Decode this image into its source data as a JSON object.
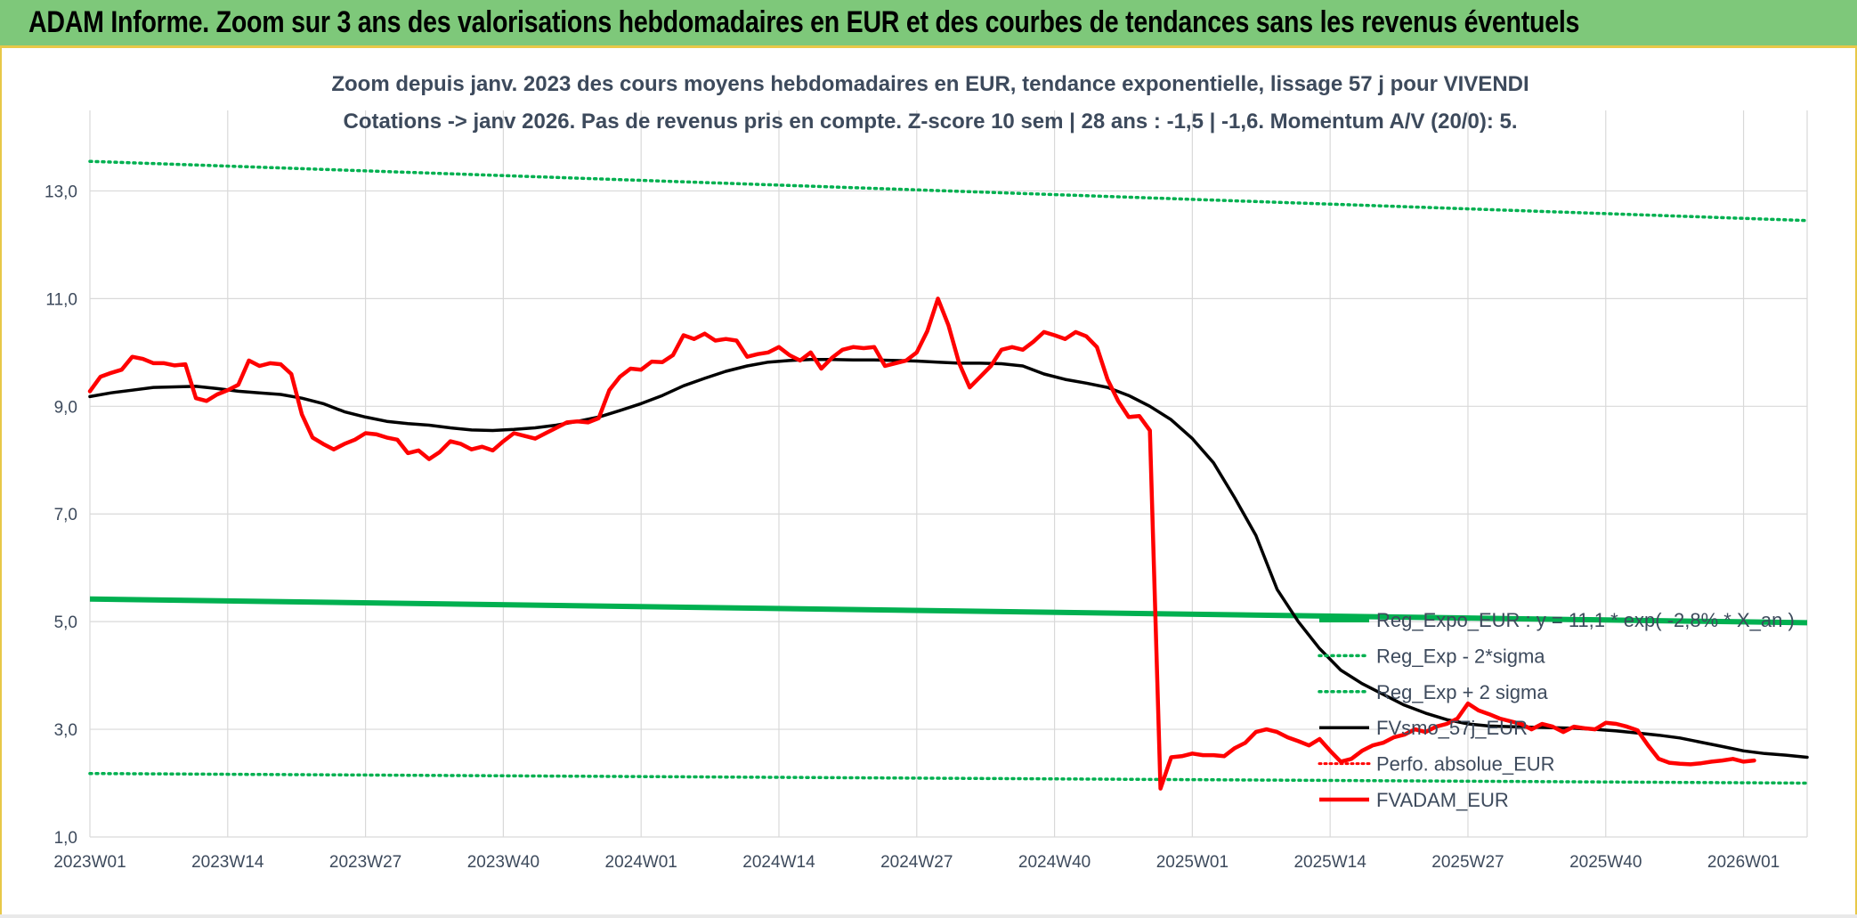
{
  "header": {
    "title": "ADAM Informe. Zoom sur 3 ans des valorisations hebdomadaires en EUR et des courbes de tendances sans les revenus éventuels"
  },
  "colors": {
    "banner": "#7ec87a",
    "reg_green": "#00b050",
    "price_red": "#ff0000",
    "smooth_black": "#000000",
    "grid": "#d9d9d9",
    "text": "#3d4a5c"
  },
  "chart_data": {
    "type": "line",
    "title_lines": [
      "Zoom depuis janv. 2023 des cours moyens hebdomadaires en EUR, tendance exponentielle, lissage 57 j pour VIVENDI",
      "Cotations -> janv 2026. Pas de revenus pris en compte. Z-score 10 sem | 28 ans : -1,5 | -1,6. Momentum A/V (20/0): 5."
    ],
    "x_ticks": [
      "2023W01",
      "2023W14",
      "2023W27",
      "2023W40",
      "2024W01",
      "2024W14",
      "2024W27",
      "2024W40",
      "2025W01",
      "2025W14",
      "2025W27",
      "2025W40",
      "2026W01"
    ],
    "x_range": [
      0,
      162
    ],
    "y_ticks": [
      "1,0",
      "3,0",
      "5,0",
      "7,0",
      "9,0",
      "11,0",
      "13,0"
    ],
    "ylim": [
      1,
      14
    ],
    "legend": [
      {
        "label": "Reg_Expo_EUR : y = 11,1 * exp( -2,8% * X_an )",
        "style": "solid-green"
      },
      {
        "label": "Reg_Exp - 2*sigma",
        "style": "dotted-green"
      },
      {
        "label": "Reg_Exp + 2 sigma",
        "style": "dotted-green"
      },
      {
        "label": "FVsmo_57j_EUR",
        "style": "solid-black"
      },
      {
        "label": "Perfo. absolue_EUR",
        "style": "dotted-red"
      },
      {
        "label": "FVADAM_EUR",
        "style": "solid-red"
      }
    ],
    "series": [
      {
        "name": "Reg_Expo_EUR",
        "points": [
          [
            0,
            5.42
          ],
          [
            162,
            4.98
          ]
        ]
      },
      {
        "name": "Reg_Exp - 2*sigma",
        "points": [
          [
            0,
            2.18
          ],
          [
            162,
            2.0
          ]
        ]
      },
      {
        "name": "Reg_Exp + 2 sigma",
        "points": [
          [
            0,
            13.55
          ],
          [
            162,
            12.45
          ]
        ]
      },
      {
        "name": "FVsmo_57j_EUR",
        "points": [
          [
            0,
            9.18
          ],
          [
            2,
            9.25
          ],
          [
            4,
            9.3
          ],
          [
            6,
            9.35
          ],
          [
            8,
            9.36
          ],
          [
            10,
            9.37
          ],
          [
            12,
            9.33
          ],
          [
            14,
            9.28
          ],
          [
            16,
            9.25
          ],
          [
            18,
            9.22
          ],
          [
            20,
            9.15
          ],
          [
            22,
            9.05
          ],
          [
            24,
            8.9
          ],
          [
            26,
            8.8
          ],
          [
            28,
            8.72
          ],
          [
            30,
            8.68
          ],
          [
            32,
            8.65
          ],
          [
            34,
            8.6
          ],
          [
            36,
            8.56
          ],
          [
            38,
            8.55
          ],
          [
            40,
            8.57
          ],
          [
            42,
            8.6
          ],
          [
            44,
            8.65
          ],
          [
            46,
            8.72
          ],
          [
            48,
            8.8
          ],
          [
            50,
            8.92
          ],
          [
            52,
            9.05
          ],
          [
            54,
            9.2
          ],
          [
            56,
            9.38
          ],
          [
            58,
            9.52
          ],
          [
            60,
            9.65
          ],
          [
            62,
            9.75
          ],
          [
            64,
            9.82
          ],
          [
            66,
            9.85
          ],
          [
            68,
            9.87
          ],
          [
            70,
            9.87
          ],
          [
            72,
            9.86
          ],
          [
            74,
            9.86
          ],
          [
            76,
            9.85
          ],
          [
            78,
            9.84
          ],
          [
            80,
            9.82
          ],
          [
            82,
            9.8
          ],
          [
            84,
            9.8
          ],
          [
            86,
            9.79
          ],
          [
            88,
            9.75
          ],
          [
            90,
            9.6
          ],
          [
            92,
            9.5
          ],
          [
            94,
            9.43
          ],
          [
            96,
            9.35
          ],
          [
            98,
            9.2
          ],
          [
            100,
            9.0
          ],
          [
            102,
            8.75
          ],
          [
            104,
            8.4
          ],
          [
            106,
            7.95
          ],
          [
            108,
            7.3
          ],
          [
            110,
            6.6
          ],
          [
            112,
            5.6
          ],
          [
            114,
            5.0
          ],
          [
            116,
            4.5
          ],
          [
            118,
            4.1
          ],
          [
            120,
            3.85
          ],
          [
            122,
            3.65
          ],
          [
            124,
            3.45
          ],
          [
            126,
            3.3
          ],
          [
            128,
            3.18
          ],
          [
            130,
            3.1
          ],
          [
            132,
            3.06
          ],
          [
            134,
            3.05
          ],
          [
            136,
            3.04
          ],
          [
            138,
            3.03
          ],
          [
            140,
            3.02
          ],
          [
            142,
            3.0
          ],
          [
            144,
            2.97
          ],
          [
            146,
            2.93
          ],
          [
            148,
            2.89
          ],
          [
            150,
            2.84
          ],
          [
            152,
            2.76
          ],
          [
            154,
            2.68
          ],
          [
            156,
            2.6
          ],
          [
            158,
            2.55
          ],
          [
            160,
            2.52
          ],
          [
            162,
            2.48
          ]
        ]
      },
      {
        "name": "FVADAM_EUR",
        "points": [
          [
            0,
            9.28
          ],
          [
            1,
            9.55
          ],
          [
            2,
            9.62
          ],
          [
            3,
            9.68
          ],
          [
            4,
            9.92
          ],
          [
            5,
            9.88
          ],
          [
            6,
            9.8
          ],
          [
            7,
            9.8
          ],
          [
            8,
            9.76
          ],
          [
            9,
            9.78
          ],
          [
            10,
            9.15
          ],
          [
            11,
            9.1
          ],
          [
            12,
            9.22
          ],
          [
            13,
            9.3
          ],
          [
            14,
            9.4
          ],
          [
            15,
            9.85
          ],
          [
            16,
            9.75
          ],
          [
            17,
            9.8
          ],
          [
            18,
            9.78
          ],
          [
            19,
            9.6
          ],
          [
            20,
            8.85
          ],
          [
            21,
            8.42
          ],
          [
            22,
            8.3
          ],
          [
            23,
            8.2
          ],
          [
            24,
            8.3
          ],
          [
            25,
            8.38
          ],
          [
            26,
            8.5
          ],
          [
            27,
            8.48
          ],
          [
            28,
            8.42
          ],
          [
            29,
            8.38
          ],
          [
            30,
            8.13
          ],
          [
            31,
            8.18
          ],
          [
            32,
            8.02
          ],
          [
            33,
            8.15
          ],
          [
            34,
            8.35
          ],
          [
            35,
            8.3
          ],
          [
            36,
            8.2
          ],
          [
            37,
            8.25
          ],
          [
            38,
            8.18
          ],
          [
            39,
            8.35
          ],
          [
            40,
            8.5
          ],
          [
            41,
            8.45
          ],
          [
            42,
            8.4
          ],
          [
            43,
            8.5
          ],
          [
            44,
            8.6
          ],
          [
            45,
            8.7
          ],
          [
            46,
            8.72
          ],
          [
            47,
            8.7
          ],
          [
            48,
            8.78
          ],
          [
            49,
            9.3
          ],
          [
            50,
            9.55
          ],
          [
            51,
            9.7
          ],
          [
            52,
            9.68
          ],
          [
            53,
            9.83
          ],
          [
            54,
            9.82
          ],
          [
            55,
            9.95
          ],
          [
            56,
            10.32
          ],
          [
            57,
            10.25
          ],
          [
            58,
            10.35
          ],
          [
            59,
            10.22
          ],
          [
            60,
            10.25
          ],
          [
            61,
            10.22
          ],
          [
            62,
            9.92
          ],
          [
            63,
            9.97
          ],
          [
            64,
            10.0
          ],
          [
            65,
            10.1
          ],
          [
            66,
            9.95
          ],
          [
            67,
            9.85
          ],
          [
            68,
            10.0
          ],
          [
            69,
            9.7
          ],
          [
            70,
            9.9
          ],
          [
            71,
            10.05
          ],
          [
            72,
            10.1
          ],
          [
            73,
            10.08
          ],
          [
            74,
            10.1
          ],
          [
            75,
            9.75
          ],
          [
            76,
            9.8
          ],
          [
            77,
            9.85
          ],
          [
            78,
            10.0
          ],
          [
            79,
            10.4
          ],
          [
            80,
            11.0
          ],
          [
            81,
            10.5
          ],
          [
            82,
            9.8
          ],
          [
            83,
            9.35
          ],
          [
            84,
            9.55
          ],
          [
            85,
            9.75
          ],
          [
            86,
            10.05
          ],
          [
            87,
            10.1
          ],
          [
            88,
            10.05
          ],
          [
            89,
            10.2
          ],
          [
            90,
            10.38
          ],
          [
            91,
            10.32
          ],
          [
            92,
            10.25
          ],
          [
            93,
            10.38
          ],
          [
            94,
            10.3
          ],
          [
            95,
            10.1
          ],
          [
            96,
            9.5
          ],
          [
            97,
            9.1
          ],
          [
            98,
            8.8
          ],
          [
            99,
            8.82
          ],
          [
            100,
            8.55
          ],
          [
            101,
            1.9
          ],
          [
            102,
            2.48
          ],
          [
            103,
            2.5
          ],
          [
            104,
            2.55
          ],
          [
            105,
            2.52
          ],
          [
            106,
            2.52
          ],
          [
            107,
            2.5
          ],
          [
            108,
            2.65
          ],
          [
            109,
            2.75
          ],
          [
            110,
            2.95
          ],
          [
            111,
            3.0
          ],
          [
            112,
            2.95
          ],
          [
            113,
            2.85
          ],
          [
            114,
            2.78
          ],
          [
            115,
            2.7
          ],
          [
            116,
            2.82
          ],
          [
            117,
            2.6
          ],
          [
            118,
            2.4
          ],
          [
            119,
            2.45
          ],
          [
            120,
            2.6
          ],
          [
            121,
            2.7
          ],
          [
            122,
            2.75
          ],
          [
            123,
            2.85
          ],
          [
            124,
            2.9
          ],
          [
            125,
            3.0
          ],
          [
            126,
            2.95
          ],
          [
            127,
            3.05
          ],
          [
            128,
            3.1
          ],
          [
            129,
            3.2
          ],
          [
            130,
            3.48
          ],
          [
            131,
            3.35
          ],
          [
            132,
            3.28
          ],
          [
            133,
            3.2
          ],
          [
            134,
            3.15
          ],
          [
            135,
            3.1
          ],
          [
            136,
            3.0
          ],
          [
            137,
            3.1
          ],
          [
            138,
            3.05
          ],
          [
            139,
            2.95
          ],
          [
            140,
            3.05
          ],
          [
            141,
            3.02
          ],
          [
            142,
            3.0
          ],
          [
            143,
            3.12
          ],
          [
            144,
            3.1
          ],
          [
            145,
            3.05
          ],
          [
            146,
            2.98
          ],
          [
            147,
            2.7
          ],
          [
            148,
            2.45
          ],
          [
            149,
            2.38
          ],
          [
            150,
            2.36
          ],
          [
            151,
            2.35
          ],
          [
            152,
            2.37
          ],
          [
            153,
            2.4
          ],
          [
            154,
            2.42
          ],
          [
            155,
            2.45
          ],
          [
            156,
            2.4
          ],
          [
            157,
            2.42
          ]
        ]
      }
    ]
  }
}
